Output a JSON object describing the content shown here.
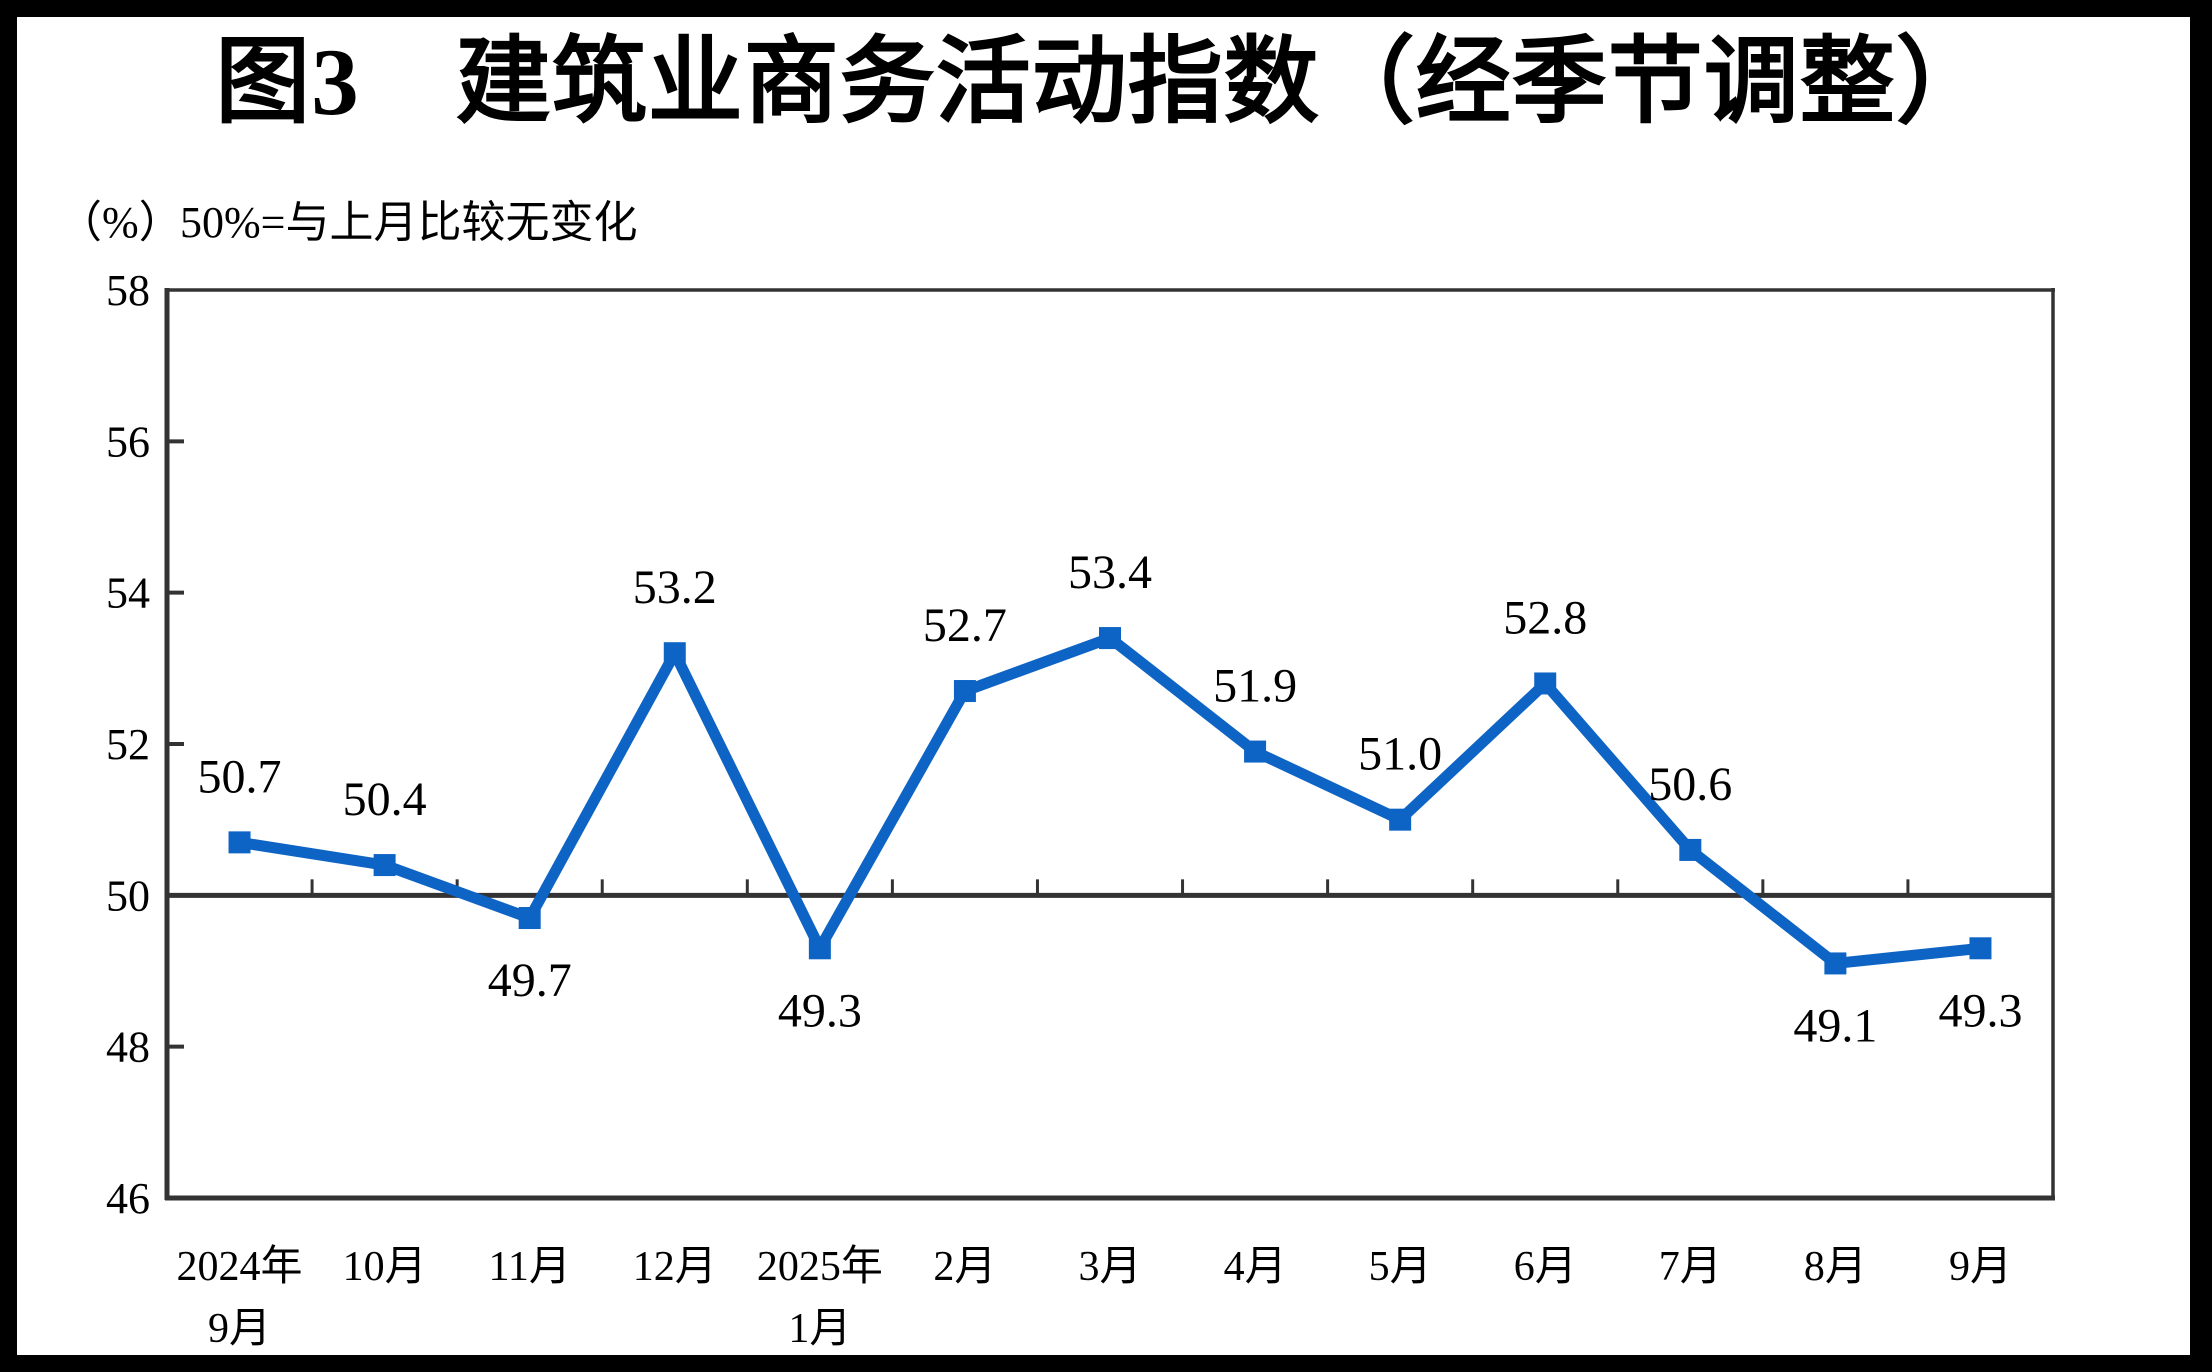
{
  "chart_data": {
    "type": "line",
    "title": "图3　建筑业商务活动指数（经季节调整）",
    "unit_label": "（%）",
    "reference_note": "50%=与上月比较无变化",
    "categories": [
      [
        "2024年",
        "9月"
      ],
      [
        "10月"
      ],
      [
        "11月"
      ],
      [
        "12月"
      ],
      [
        "2025年",
        "1月"
      ],
      [
        "2月"
      ],
      [
        "3月"
      ],
      [
        "4月"
      ],
      [
        "5月"
      ],
      [
        "6月"
      ],
      [
        "7月"
      ],
      [
        "8月"
      ],
      [
        "9月"
      ]
    ],
    "series": [
      {
        "name": "建筑业商务活动指数（经季节调整）",
        "values": [
          50.7,
          50.4,
          49.7,
          53.2,
          49.3,
          52.7,
          53.4,
          51.9,
          51.0,
          52.8,
          50.6,
          49.1,
          49.3
        ]
      }
    ],
    "value_label_positions": [
      "above",
      "above",
      "below",
      "above",
      "below",
      "above",
      "above",
      "above",
      "above",
      "above",
      "above",
      "below",
      "below"
    ],
    "value_label_format": "one_decimal",
    "ylim": [
      46,
      58
    ],
    "yticks": [
      46,
      48,
      50,
      52,
      54,
      56,
      58
    ],
    "reference_line": 50,
    "grid": false,
    "legend": false,
    "xlabel": "",
    "ylabel": "",
    "colors": {
      "series": "#0e64c4",
      "axis": "#333333",
      "text": "#000000",
      "plot_background": "#ffffff",
      "frame": "#000000"
    }
  }
}
